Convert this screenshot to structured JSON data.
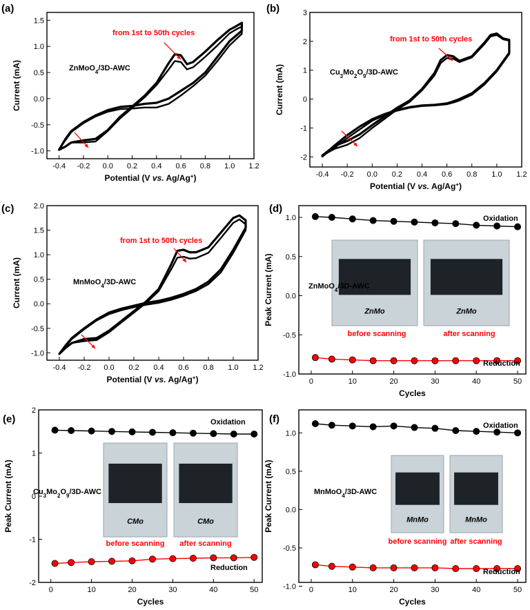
{
  "colors": {
    "curve": "#000000",
    "annotation": "#ff0000",
    "oxidation": "#000000",
    "reduction": "#ff0000",
    "frame": "#000000",
    "photo_bg": "#c9d3d8",
    "photo_block": "#1d2326"
  },
  "chart_data": [
    {
      "id": "a",
      "type": "line",
      "panel_label": "(a)",
      "sample": [
        "ZnMoO",
        "4",
        "/3D-AWC"
      ],
      "annotation": "from 1st to 50th cycles",
      "xlabel": "Potential (V vs. Ag/Ag+)",
      "xlabel_parts": [
        "Potential (V ",
        "vs.",
        " Ag/Ag",
        "+",
        ")"
      ],
      "ylabel": "Current (mA)",
      "xlim": [
        -0.5,
        1.2
      ],
      "ylim": [
        -1.15,
        1.65
      ],
      "xticks": [
        -0.4,
        -0.2,
        0.0,
        0.2,
        0.4,
        0.6,
        0.8,
        1.0,
        1.2
      ],
      "xtick_labels": [
        "-0.4",
        "-0.2",
        "0.0",
        "0.2",
        "0.4",
        "0.6",
        "0.8",
        "1.0",
        "1.2"
      ],
      "yticks": [
        -1.0,
        -0.5,
        0.0,
        0.5,
        1.0,
        1.5
      ],
      "ytick_labels": [
        "-1.0",
        "-0.5",
        "0.0",
        "0.5",
        "1.0",
        "1.5"
      ],
      "series": [
        {
          "x": [
            -0.4,
            -0.35,
            -0.3,
            -0.2,
            -0.1,
            0.0,
            0.1,
            0.2,
            0.3,
            0.4,
            0.5,
            0.55,
            0.6,
            0.65,
            0.7,
            0.8,
            0.9,
            1.0,
            1.05,
            1.1,
            1.1,
            1.0,
            0.9,
            0.8,
            0.7,
            0.6,
            0.5,
            0.4,
            0.3,
            0.2,
            0.1,
            0.0,
            -0.1,
            -0.2,
            -0.3,
            -0.35,
            -0.4
          ],
          "y": [
            -0.98,
            -0.92,
            -0.84,
            -0.8,
            -0.77,
            -0.6,
            -0.35,
            -0.15,
            0.05,
            0.3,
            0.68,
            0.85,
            0.83,
            0.66,
            0.7,
            0.9,
            1.12,
            1.32,
            1.38,
            1.45,
            1.3,
            1.1,
            0.8,
            0.5,
            0.3,
            0.15,
            0.0,
            -0.08,
            -0.1,
            -0.14,
            -0.16,
            -0.22,
            -0.32,
            -0.45,
            -0.62,
            -0.78,
            -0.98
          ]
        },
        {
          "x": [
            -0.4,
            -0.35,
            -0.3,
            -0.2,
            -0.1,
            0.0,
            0.1,
            0.2,
            0.3,
            0.4,
            0.5,
            0.55,
            0.6,
            0.65,
            0.7,
            0.8,
            0.9,
            1.0,
            1.05,
            1.1,
            1.1,
            1.0,
            0.9,
            0.8,
            0.7,
            0.6,
            0.5,
            0.4,
            0.3,
            0.2,
            0.1,
            0.0,
            -0.1,
            -0.2,
            -0.3,
            -0.35,
            -0.4
          ],
          "y": [
            -0.98,
            -0.92,
            -0.84,
            -0.84,
            -0.82,
            -0.62,
            -0.38,
            -0.18,
            0.02,
            0.26,
            0.56,
            0.72,
            0.7,
            0.56,
            0.6,
            0.8,
            1.02,
            1.25,
            1.32,
            1.38,
            1.24,
            1.02,
            0.72,
            0.44,
            0.24,
            0.06,
            -0.1,
            -0.17,
            -0.17,
            -0.19,
            -0.2,
            -0.25,
            -0.34,
            -0.47,
            -0.64,
            -0.8,
            -0.98
          ]
        }
      ]
    },
    {
      "id": "b",
      "type": "line",
      "panel_label": "(b)",
      "sample": [
        "Cu",
        "3",
        "Mo",
        "2",
        "O",
        "9",
        "/3D-AWC"
      ],
      "annotation": "from 1st to 50th cycles",
      "xlabel": "Potential (V vs. Ag/Ag+)",
      "xlabel_parts": [
        "Potential (V ",
        "vs.",
        " Ag/Ag",
        "+",
        ")"
      ],
      "ylabel": "Current (mA)",
      "xlim": [
        -0.5,
        1.2
      ],
      "ylim": [
        -2.35,
        3.0
      ],
      "xticks": [
        -0.4,
        -0.2,
        0.0,
        0.2,
        0.4,
        0.6,
        0.8,
        1.0,
        1.2
      ],
      "xtick_labels": [
        "-0.4",
        "-0.2",
        "0.0",
        "0.2",
        "0.4",
        "0.6",
        "0.8",
        "1.0",
        "1.2"
      ],
      "yticks": [
        -2,
        -1,
        0,
        1,
        2,
        3
      ],
      "ytick_labels": [
        "-2",
        "-1",
        "0",
        "1",
        "2",
        "3"
      ],
      "series": [
        {
          "x": [
            -0.4,
            -0.3,
            -0.2,
            -0.1,
            0.0,
            0.1,
            0.2,
            0.3,
            0.4,
            0.5,
            0.55,
            0.6,
            0.65,
            0.7,
            0.8,
            0.9,
            0.95,
            1.0,
            1.05,
            1.1,
            1.1,
            1.0,
            0.9,
            0.8,
            0.7,
            0.65,
            0.6,
            0.5,
            0.4,
            0.3,
            0.2,
            0.1,
            0.0,
            -0.1,
            -0.2,
            -0.3,
            -0.4
          ],
          "y": [
            -1.95,
            -1.62,
            -1.45,
            -1.22,
            -0.9,
            -0.6,
            -0.3,
            -0.05,
            0.35,
            0.9,
            1.35,
            1.52,
            1.48,
            1.32,
            1.48,
            1.95,
            2.22,
            2.27,
            2.1,
            2.05,
            1.6,
            1.0,
            0.55,
            0.2,
            0.0,
            -0.08,
            -0.15,
            -0.2,
            -0.22,
            -0.28,
            -0.38,
            -0.52,
            -0.7,
            -0.95,
            -1.25,
            -1.6,
            -1.98
          ]
        },
        {
          "x": [
            -0.4,
            -0.3,
            -0.2,
            -0.1,
            0.0,
            0.1,
            0.2,
            0.3,
            0.4,
            0.5,
            0.55,
            0.6,
            0.65,
            0.7,
            0.8,
            0.9,
            0.95,
            1.0,
            1.05,
            1.1,
            1.1,
            1.0,
            0.9,
            0.8,
            0.7,
            0.65,
            0.6,
            0.5,
            0.4,
            0.3,
            0.2,
            0.1,
            0.0,
            -0.1,
            -0.2,
            -0.3,
            -0.4
          ],
          "y": [
            -1.95,
            -1.72,
            -1.58,
            -1.35,
            -1.0,
            -0.68,
            -0.36,
            -0.1,
            0.3,
            0.82,
            1.25,
            1.42,
            1.4,
            1.28,
            1.44,
            1.9,
            2.17,
            2.22,
            2.07,
            2.02,
            1.56,
            0.96,
            0.5,
            0.15,
            -0.05,
            -0.12,
            -0.18,
            -0.22,
            -0.24,
            -0.3,
            -0.4,
            -0.55,
            -0.75,
            -1.05,
            -1.35,
            -1.68,
            -1.98
          ]
        }
      ]
    },
    {
      "id": "c",
      "type": "line",
      "panel_label": "(c)",
      "sample": [
        "MnMoO",
        "4",
        "/3D-AWC"
      ],
      "annotation": "from 1st to 50th cycles",
      "xlabel": "Potential (V vs. Ag/Ag+)",
      "xlabel_parts": [
        "Potential (V ",
        "vs.",
        " Ag/Ag",
        "+",
        ")"
      ],
      "ylabel": "Current (mA)",
      "xlim": [
        -0.5,
        1.2
      ],
      "ylim": [
        -1.15,
        2.0
      ],
      "xticks": [
        -0.4,
        -0.2,
        0.0,
        0.2,
        0.4,
        0.6,
        0.8,
        1.0,
        1.2
      ],
      "xtick_labels": [
        "-0.4",
        "-0.2",
        "0.0",
        "0.2",
        "0.4",
        "0.6",
        "0.8",
        "1.0",
        "1.2"
      ],
      "yticks": [
        -1.0,
        -0.5,
        0.0,
        0.5,
        1.0,
        1.5,
        2.0
      ],
      "ytick_labels": [
        "-1.0",
        "-0.5",
        "0.0",
        "0.5",
        "1.0",
        "1.5",
        "2.0"
      ],
      "series": [
        {
          "x": [
            -0.4,
            -0.35,
            -0.3,
            -0.2,
            -0.1,
            0.0,
            0.1,
            0.2,
            0.3,
            0.4,
            0.5,
            0.55,
            0.6,
            0.65,
            0.7,
            0.8,
            0.9,
            1.0,
            1.05,
            1.1,
            1.1,
            1.0,
            0.9,
            0.8,
            0.7,
            0.6,
            0.5,
            0.4,
            0.3,
            0.2,
            0.1,
            0.0,
            -0.1,
            -0.2,
            -0.3,
            -0.35,
            -0.4
          ],
          "y": [
            -1.02,
            -0.9,
            -0.8,
            -0.72,
            -0.7,
            -0.55,
            -0.35,
            -0.15,
            0.05,
            0.3,
            0.8,
            1.08,
            1.1,
            1.05,
            1.05,
            1.15,
            1.45,
            1.75,
            1.8,
            1.7,
            1.55,
            1.1,
            0.7,
            0.45,
            0.3,
            0.2,
            0.12,
            0.06,
            0.02,
            -0.04,
            -0.1,
            -0.18,
            -0.32,
            -0.5,
            -0.7,
            -0.85,
            -1.02
          ]
        },
        {
          "x": [
            -0.4,
            -0.35,
            -0.3,
            -0.2,
            -0.1,
            0.0,
            0.1,
            0.2,
            0.3,
            0.4,
            0.5,
            0.55,
            0.6,
            0.65,
            0.7,
            0.8,
            0.9,
            1.0,
            1.05,
            1.1,
            1.1,
            1.0,
            0.9,
            0.8,
            0.7,
            0.6,
            0.5,
            0.4,
            0.3,
            0.2,
            0.1,
            0.0,
            -0.1,
            -0.2,
            -0.3,
            -0.35,
            -0.4
          ],
          "y": [
            -1.02,
            -0.9,
            -0.8,
            -0.76,
            -0.74,
            -0.58,
            -0.38,
            -0.18,
            0.02,
            0.26,
            0.7,
            0.94,
            0.96,
            0.92,
            0.93,
            1.04,
            1.34,
            1.65,
            1.72,
            1.62,
            1.5,
            1.04,
            0.64,
            0.4,
            0.26,
            0.16,
            0.08,
            0.02,
            -0.02,
            -0.07,
            -0.13,
            -0.21,
            -0.34,
            -0.52,
            -0.72,
            -0.87,
            -1.02
          ]
        }
      ]
    },
    {
      "id": "d",
      "type": "line",
      "panel_label": "(d)",
      "sample": [
        "ZnMoO",
        "4",
        "/3D-AWC"
      ],
      "xlabel": "Cycles",
      "ylabel": "Peak Current (mA)",
      "xlim": [
        -3,
        52
      ],
      "ylim": [
        -1.0,
        1.15
      ],
      "xticks": [
        0,
        10,
        20,
        30,
        40,
        50
      ],
      "xtick_labels": [
        "0",
        "10",
        "20",
        "30",
        "40",
        "50"
      ],
      "yticks": [
        -1.0,
        -0.5,
        0.0,
        0.5,
        1.0
      ],
      "ytick_labels": [
        "-1.0",
        "-0.5",
        "0.0",
        "0.5",
        "1.0"
      ],
      "x": [
        1,
        5,
        10,
        15,
        20,
        25,
        30,
        35,
        40,
        45,
        50
      ],
      "series": [
        {
          "name": "Oxidation",
          "values": [
            1.01,
            1.0,
            0.98,
            0.96,
            0.95,
            0.94,
            0.93,
            0.92,
            0.9,
            0.89,
            0.88
          ]
        },
        {
          "name": "Reduction",
          "values": [
            -0.79,
            -0.81,
            -0.82,
            -0.83,
            -0.83,
            -0.83,
            -0.83,
            -0.83,
            -0.83,
            -0.83,
            -0.83
          ]
        }
      ],
      "photo_captions": [
        "before scanning",
        "after scanning"
      ],
      "photo_writing": "ZnMo"
    },
    {
      "id": "e",
      "type": "line",
      "panel_label": "(e)",
      "sample": [
        "Cu",
        "3",
        "Mo",
        "2",
        "O",
        "9",
        "/3D-AWC"
      ],
      "xlabel": "Cycles",
      "ylabel": "Peak Current (mA)",
      "xlim": [
        -3,
        52
      ],
      "ylim": [
        -2.0,
        2.0
      ],
      "xticks": [
        0,
        10,
        20,
        30,
        40,
        50
      ],
      "xtick_labels": [
        "0",
        "10",
        "20",
        "30",
        "40",
        "50"
      ],
      "yticks": [
        -2,
        -1,
        0,
        1,
        2
      ],
      "ytick_labels": [
        "-2",
        "-1",
        "0",
        "1",
        "2"
      ],
      "x": [
        1,
        5,
        10,
        15,
        20,
        25,
        30,
        35,
        40,
        45,
        50
      ],
      "series": [
        {
          "name": "Oxidation",
          "values": [
            1.53,
            1.52,
            1.51,
            1.5,
            1.49,
            1.48,
            1.47,
            1.46,
            1.45,
            1.44,
            1.44
          ]
        },
        {
          "name": "Reduction",
          "values": [
            -1.56,
            -1.54,
            -1.52,
            -1.51,
            -1.5,
            -1.46,
            -1.45,
            -1.44,
            -1.43,
            -1.43,
            -1.42
          ]
        }
      ],
      "photo_captions": [
        "before scanning",
        "after scanning"
      ],
      "photo_writing": "CMo"
    },
    {
      "id": "f",
      "type": "line",
      "panel_label": "(f)",
      "sample": [
        "MnMoO",
        "4",
        "/3D-AWC"
      ],
      "xlabel": "Cycles",
      "ylabel": "Peak Current (mA)",
      "xlim": [
        -3,
        52
      ],
      "ylim": [
        -0.95,
        1.3
      ],
      "xticks": [
        0,
        10,
        20,
        30,
        40,
        50
      ],
      "xtick_labels": [
        "0",
        "10",
        "20",
        "30",
        "40",
        "50"
      ],
      "yticks": [
        -1.0,
        -0.5,
        0.0,
        0.5,
        1.0
      ],
      "ytick_labels": [
        "-1.0",
        "-0.5",
        "0.0",
        "0.5",
        "1.0"
      ],
      "x": [
        1,
        5,
        10,
        15,
        20,
        25,
        30,
        35,
        40,
        45,
        50
      ],
      "series": [
        {
          "name": "Oxidation",
          "values": [
            1.12,
            1.1,
            1.09,
            1.08,
            1.09,
            1.07,
            1.06,
            1.03,
            1.02,
            1.01,
            1.0
          ]
        },
        {
          "name": "Reduction",
          "values": [
            -0.72,
            -0.74,
            -0.75,
            -0.76,
            -0.76,
            -0.76,
            -0.76,
            -0.77,
            -0.77,
            -0.77,
            -0.77
          ]
        }
      ],
      "photo_captions": [
        "before scanning",
        "after scanning"
      ],
      "photo_writing": "MnMo"
    }
  ]
}
